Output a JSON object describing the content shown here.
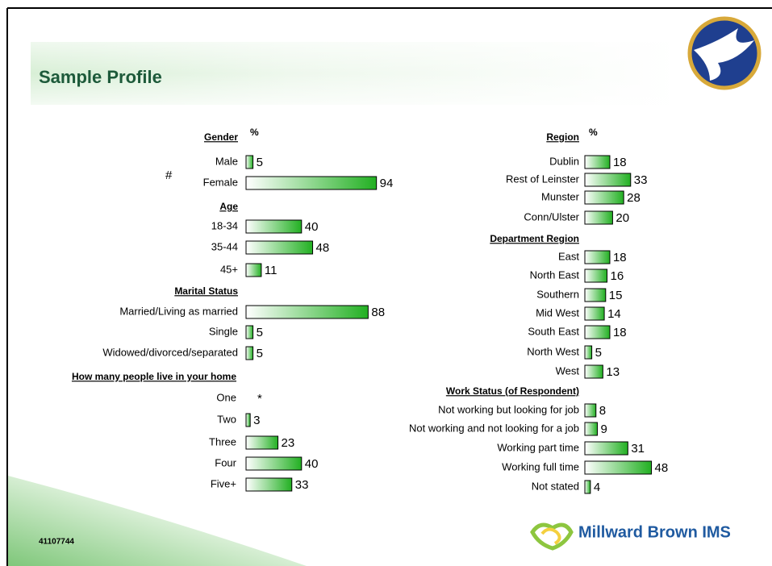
{
  "title": "Sample Profile",
  "annotation": "#",
  "job_code": "41107744",
  "brand": "Millward Brown IMS",
  "chart_data": [
    {
      "type": "bar",
      "title": "Gender",
      "value_header": "%",
      "categories": [
        "Male",
        "Female"
      ],
      "values": [
        5,
        94
      ]
    },
    {
      "type": "bar",
      "title": "Age",
      "categories": [
        "18-34",
        "35-44",
        "45+"
      ],
      "values": [
        40,
        48,
        11
      ]
    },
    {
      "type": "bar",
      "title": "Marital Status",
      "categories": [
        "Married/Living as married",
        "Single",
        "Widowed/divorced/separated"
      ],
      "values": [
        88,
        5,
        5
      ]
    },
    {
      "type": "bar",
      "title": "How many people live in your home",
      "categories": [
        "One",
        "Two",
        "Three",
        "Four",
        "Five+"
      ],
      "values": [
        null,
        3,
        23,
        40,
        33
      ],
      "value_labels": [
        "*",
        "3",
        "23",
        "40",
        "33"
      ]
    },
    {
      "type": "bar",
      "title": "Region",
      "value_header": "%",
      "categories": [
        "Dublin",
        "Rest of Leinster",
        "Munster",
        "Conn/Ulster"
      ],
      "values": [
        18,
        33,
        28,
        20
      ]
    },
    {
      "type": "bar",
      "title": "Department Region",
      "categories": [
        "East",
        "North East",
        "Southern",
        "Mid West",
        "South East",
        "North West",
        "West"
      ],
      "values": [
        18,
        16,
        15,
        14,
        18,
        5,
        13
      ]
    },
    {
      "type": "bar",
      "title": "Work Status (of Respondent)",
      "categories": [
        "Not working but looking for job",
        "Not working and not looking for a job",
        "Working part time",
        "Working full time",
        "Not stated"
      ],
      "values": [
        8,
        9,
        31,
        48,
        4
      ]
    }
  ]
}
